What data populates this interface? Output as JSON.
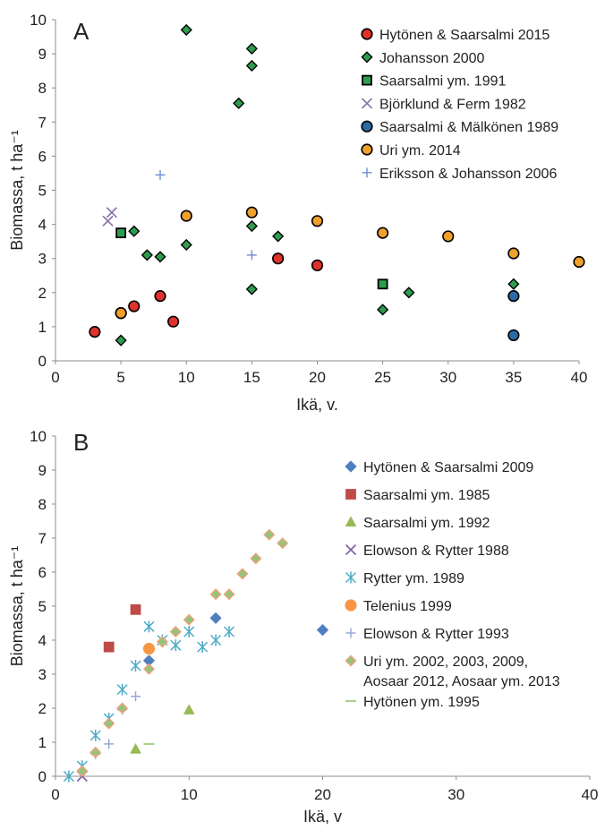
{
  "chart_data": [
    {
      "panel_label": "A",
      "type": "scatter",
      "xlabel": "Ikä, v.",
      "ylabel": "Biomassa, t ha⁻¹",
      "xlim": [
        0,
        40
      ],
      "ylim": [
        0,
        10
      ],
      "x_ticks": [
        "0",
        "5",
        "10",
        "15",
        "20",
        "25",
        "30",
        "35",
        "40"
      ],
      "y_ticks": [
        "0",
        "1",
        "2",
        "3",
        "4",
        "5",
        "6",
        "7",
        "8",
        "9",
        "10"
      ],
      "grid": false,
      "legend_position": "top-right",
      "series": [
        {
          "name": "Hytönen & Saarsalmi 2015",
          "marker": "circle",
          "color": "#e0312b",
          "stroke": "#000000",
          "points": [
            [
              3,
              0.85
            ],
            [
              5,
              1.4
            ],
            [
              6,
              1.6
            ],
            [
              8,
              1.9
            ],
            [
              9,
              1.15
            ],
            [
              17,
              3.0
            ],
            [
              20,
              2.8
            ]
          ]
        },
        {
          "name": "Johansson 2000",
          "marker": "diamond",
          "color": "#2e9e4e",
          "stroke": "#000000",
          "points": [
            [
              5,
              0.6
            ],
            [
              6,
              3.8
            ],
            [
              7,
              3.1
            ],
            [
              8,
              3.05
            ],
            [
              10,
              9.7
            ],
            [
              10,
              3.4
            ],
            [
              14,
              7.55
            ],
            [
              15,
              9.15
            ],
            [
              15,
              8.65
            ],
            [
              15,
              3.95
            ],
            [
              15,
              2.1
            ],
            [
              17,
              3.65
            ],
            [
              25,
              1.5
            ],
            [
              27,
              2.0
            ],
            [
              35,
              2.25
            ]
          ]
        },
        {
          "name": "Saarsalmi ym. 1991",
          "marker": "square",
          "color": "#2e9e4e",
          "stroke": "#000000",
          "points": [
            [
              5,
              3.75
            ],
            [
              25,
              2.25
            ]
          ]
        },
        {
          "name": "Björklund & Ferm 1982",
          "marker": "x",
          "color": "#8570a8",
          "stroke": "#8570a8",
          "points": [
            [
              4,
              4.1
            ],
            [
              4.3,
              4.35
            ]
          ]
        },
        {
          "name": "Saarsalmi & Mälkönen 1989",
          "marker": "circle",
          "color": "#2a6aa6",
          "stroke": "#000000",
          "points": [
            [
              35,
              1.9
            ],
            [
              35,
              0.75
            ]
          ]
        },
        {
          "name": "Uri ym. 2014",
          "marker": "circle",
          "color": "#f0a02d",
          "stroke": "#000000",
          "points": [
            [
              5,
              1.4
            ],
            [
              10,
              4.25
            ],
            [
              15,
              4.35
            ],
            [
              20,
              4.1
            ],
            [
              25,
              3.75
            ],
            [
              30,
              3.65
            ],
            [
              35,
              3.15
            ],
            [
              40,
              2.9
            ]
          ]
        },
        {
          "name": "Eriksson & Johansson 2006",
          "marker": "plus",
          "color": "#6f8fd0",
          "stroke": "#6f8fd0",
          "points": [
            [
              8,
              5.45
            ],
            [
              15,
              3.1
            ]
          ]
        }
      ]
    },
    {
      "panel_label": "B",
      "type": "scatter",
      "xlabel": "Ikä, v",
      "ylabel": "Biomassa, t ha⁻¹",
      "xlim": [
        0,
        40
      ],
      "ylim": [
        0,
        10
      ],
      "x_ticks": [
        "0",
        "10",
        "20",
        "30",
        "40"
      ],
      "y_ticks": [
        "0",
        "1",
        "2",
        "3",
        "4",
        "5",
        "6",
        "7",
        "8",
        "9",
        "10"
      ],
      "grid": false,
      "legend_position": "right",
      "series": [
        {
          "name": "Hytönen & Saarsalmi 2009",
          "marker": "diamond",
          "color": "#4e7fbf",
          "stroke": "#4e7fbf",
          "points": [
            [
              7,
              3.4
            ],
            [
              12,
              4.65
            ],
            [
              20,
              4.3
            ]
          ]
        },
        {
          "name": "Saarsalmi ym. 1985",
          "marker": "square",
          "color": "#be4b48",
          "stroke": "#be4b48",
          "points": [
            [
              4,
              3.8
            ],
            [
              6,
              4.9
            ]
          ]
        },
        {
          "name": "Saarsalmi ym. 1992",
          "marker": "triangle",
          "color": "#98b954",
          "stroke": "#98b954",
          "points": [
            [
              6,
              0.8
            ],
            [
              10,
              1.95
            ]
          ]
        },
        {
          "name": "Elowson & Rytter 1988",
          "marker": "x",
          "color": "#7d60a0",
          "stroke": "#7d60a0",
          "points": [
            [
              2,
              0.0
            ]
          ]
        },
        {
          "name": "Rytter ym. 1989",
          "marker": "asterisk",
          "color": "#4bacc6",
          "stroke": "#4bacc6",
          "points": [
            [
              1,
              0.0
            ],
            [
              2,
              0.3
            ],
            [
              3,
              1.2
            ],
            [
              4,
              1.7
            ],
            [
              5,
              2.55
            ],
            [
              6,
              3.25
            ],
            [
              7,
              4.4
            ],
            [
              8,
              4.0
            ],
            [
              9,
              3.85
            ],
            [
              10,
              4.25
            ],
            [
              11,
              3.8
            ],
            [
              12,
              4.0
            ],
            [
              13,
              4.25
            ]
          ]
        },
        {
          "name": "Telenius 1999",
          "marker": "circle",
          "color": "#f79646",
          "stroke": "#f79646",
          "points": [
            [
              7,
              3.75
            ]
          ]
        },
        {
          "name": "Elowson & Rytter 1993",
          "marker": "plus",
          "color": "#8fa6d8",
          "stroke": "#8fa6d8",
          "points": [
            [
              3,
              0.65
            ],
            [
              4,
              0.95
            ],
            [
              5,
              1.95
            ],
            [
              6,
              2.35
            ]
          ]
        },
        {
          "name": "Uri ym. 2002, 2003, 2009,\nAosaar 2012, Aosaar ym. 2013",
          "marker": "diamond",
          "color": "#92c47d",
          "stroke": "#f2a27a",
          "points": [
            [
              2,
              0.15
            ],
            [
              3,
              0.7
            ],
            [
              4,
              1.55
            ],
            [
              5,
              2.0
            ],
            [
              7,
              3.15
            ],
            [
              8,
              3.95
            ],
            [
              9,
              4.25
            ],
            [
              10,
              4.6
            ],
            [
              12,
              5.35
            ],
            [
              13,
              5.35
            ],
            [
              14,
              5.95
            ],
            [
              15,
              6.4
            ],
            [
              16,
              7.1
            ],
            [
              17,
              6.85
            ]
          ]
        },
        {
          "name": "Hytönen ym. 1995",
          "marker": "dash",
          "color": "#a9d18e",
          "stroke": "#a9d18e",
          "points": [
            [
              7,
              0.95
            ]
          ]
        }
      ]
    }
  ]
}
